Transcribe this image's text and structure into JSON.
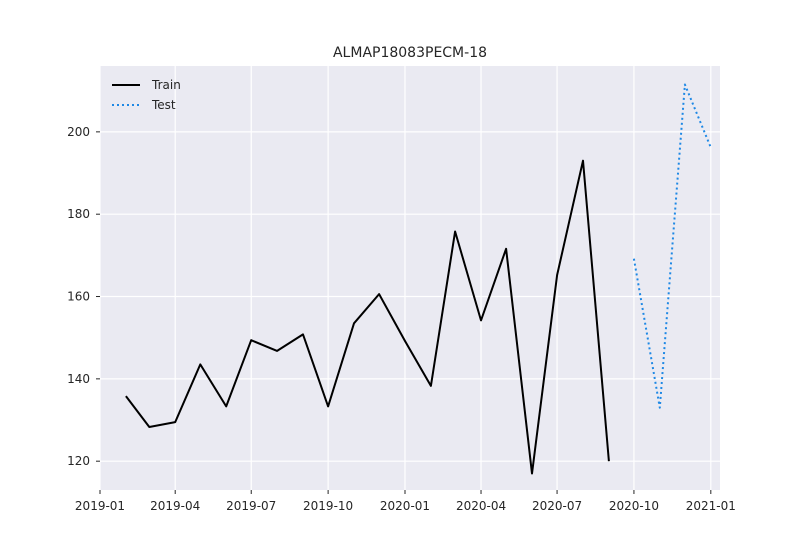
{
  "chart_data": {
    "type": "line",
    "title": "ALMAP18083PECM-18",
    "xlabel": "",
    "ylabel": "",
    "xlim": [
      "2019-01-01",
      "2021-01-12"
    ],
    "ylim": [
      113,
      216
    ],
    "x_ticks": [
      "2019-01",
      "2019-04",
      "2019-07",
      "2019-10",
      "2020-01",
      "2020-04",
      "2020-07",
      "2020-10",
      "2021-01"
    ],
    "y_ticks": [
      120,
      140,
      160,
      180,
      200
    ],
    "grid": true,
    "legend_position": "top-left",
    "series": [
      {
        "name": "Train",
        "color": "#000000",
        "style": "solid",
        "x": [
          "2019-02-01",
          "2019-03-01",
          "2019-04-01",
          "2019-05-01",
          "2019-06-01",
          "2019-07-01",
          "2019-08-01",
          "2019-09-01",
          "2019-10-01",
          "2019-11-01",
          "2019-12-01",
          "2020-01-01",
          "2020-02-01",
          "2020-03-01",
          "2020-04-01",
          "2020-05-01",
          "2020-06-01",
          "2020-07-01",
          "2020-08-01",
          "2020-09-01"
        ],
        "values": [
          135.8,
          128.3,
          129.5,
          143.5,
          133.3,
          149.4,
          146.8,
          150.8,
          133.3,
          153.5,
          160.6,
          149.2,
          138.3,
          175.8,
          154.2,
          171.6,
          117.0,
          165.2,
          193.0,
          120.0
        ]
      },
      {
        "name": "Test",
        "color": "#1e88e5",
        "style": "dotted",
        "x": [
          "2020-10-01",
          "2020-11-01",
          "2020-12-01",
          "2021-01-01"
        ],
        "values": [
          169.2,
          133.0,
          211.5,
          196.2
        ]
      }
    ]
  }
}
